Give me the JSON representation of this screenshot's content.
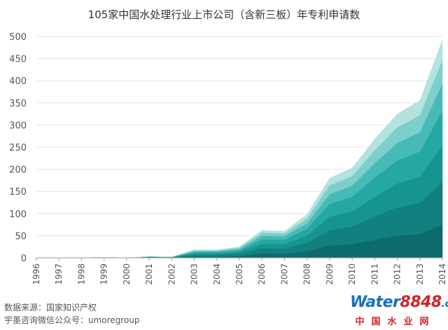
{
  "title": "105家中国水处理行业上市公司（含新三板）年专利申请数",
  "source": {
    "line1": "数据来源：国家知识产权",
    "line2": "宇墨咨询微信公众号：umoregroup"
  },
  "logo": {
    "part1": "Water",
    "part2": "8848",
    "part3": ".com",
    "sub": "中国水业网",
    "color_blue": "#1a6fc0",
    "color_red": "#d0242a"
  },
  "chart_data": {
    "type": "area",
    "stacked": true,
    "title": "105家中国水处理行业上市公司（含新三板）年专利申请数",
    "x": [
      "1996",
      "1997",
      "1998",
      "1999",
      "2000",
      "2001",
      "2002",
      "2003",
      "2004",
      "2005",
      "2006",
      "2007",
      "2008",
      "2009",
      "2010",
      "2011",
      "2012",
      "2013",
      "2014"
    ],
    "ylim": [
      0,
      500
    ],
    "yticks": [
      0,
      50,
      100,
      150,
      200,
      250,
      300,
      350,
      400,
      450,
      500
    ],
    "grid": true,
    "total": [
      0,
      0,
      0,
      1,
      0,
      3,
      2,
      18,
      18,
      25,
      62,
      60,
      98,
      180,
      203,
      268,
      325,
      355,
      492
    ],
    "series": [
      {
        "values": [
          0,
          0,
          0,
          0,
          0,
          1,
          0,
          3,
          3,
          4,
          10,
          9,
          15,
          28,
          31,
          41,
          50,
          54,
          75
        ],
        "color": "#0d6b6b"
      },
      {
        "values": [
          0,
          0,
          0,
          0,
          0,
          1,
          1,
          4,
          4,
          5,
          12,
          12,
          19,
          35,
          40,
          53,
          64,
          70,
          97
        ],
        "color": "#11807e"
      },
      {
        "values": [
          0,
          0,
          0,
          1,
          0,
          0,
          0,
          3,
          3,
          4,
          10,
          10,
          16,
          30,
          34,
          44,
          54,
          59,
          82
        ],
        "color": "#17948f"
      },
      {
        "values": [
          0,
          0,
          0,
          0,
          0,
          1,
          1,
          3,
          3,
          4,
          10,
          10,
          16,
          29,
          33,
          43,
          52,
          57,
          79
        ],
        "color": "#25a7a2"
      },
      {
        "values": [
          0,
          0,
          0,
          0,
          0,
          0,
          0,
          2,
          2,
          3,
          8,
          8,
          12,
          22,
          25,
          33,
          40,
          44,
          61
        ],
        "color": "#48bab5"
      },
      {
        "values": [
          0,
          0,
          0,
          0,
          0,
          0,
          0,
          2,
          2,
          3,
          7,
          6,
          11,
          20,
          22,
          29,
          35,
          38,
          53
        ],
        "color": "#7ccfca"
      },
      {
        "values": [
          0,
          0,
          0,
          0,
          0,
          0,
          0,
          1,
          1,
          2,
          5,
          5,
          9,
          16,
          18,
          25,
          30,
          33,
          45
        ],
        "color": "#b3e2df"
      }
    ]
  }
}
